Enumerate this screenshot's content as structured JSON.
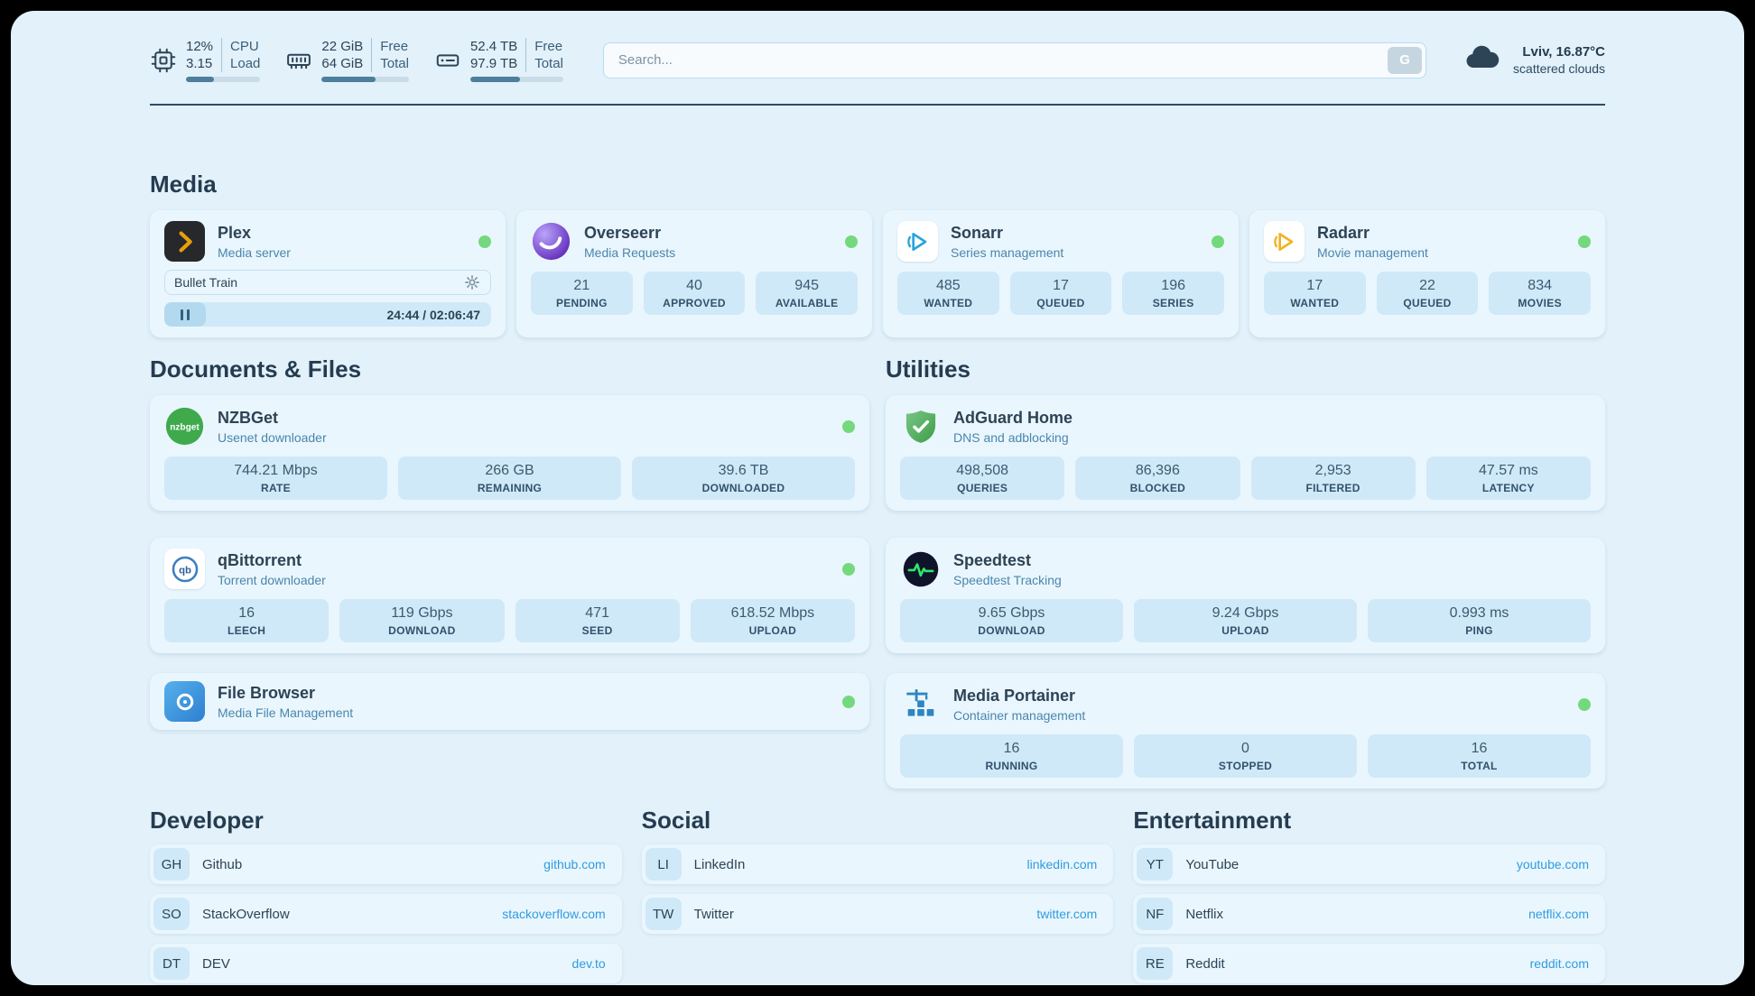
{
  "topbar": {
    "metrics": [
      {
        "rows": [
          {
            "value": "12%",
            "label": "CPU"
          },
          {
            "value": "3.15",
            "label": "Load"
          }
        ],
        "progress": 38
      },
      {
        "rows": [
          {
            "value": "22 GiB",
            "label": "Free"
          },
          {
            "value": "64 GiB",
            "label": "Total"
          }
        ],
        "progress": 62
      },
      {
        "rows": [
          {
            "value": "52.4 TB",
            "label": "Free"
          },
          {
            "value": "97.9 TB",
            "label": "Total"
          }
        ],
        "progress": 53
      }
    ],
    "search": {
      "placeholder": "Search...",
      "button_label": "G"
    },
    "weather": {
      "location": "Lviv, 16.87°C",
      "condition": "scattered clouds"
    }
  },
  "sections": {
    "media": {
      "title": "Media"
    },
    "documents": {
      "title": "Documents & Files"
    },
    "utilities": {
      "title": "Utilities"
    },
    "developer": {
      "title": "Developer"
    },
    "social": {
      "title": "Social"
    },
    "entertainment": {
      "title": "Entertainment"
    }
  },
  "apps": {
    "plex": {
      "name": "Plex",
      "subtitle": "Media server",
      "status": "online",
      "player": {
        "title": "Bullet Train",
        "time": "24:44 / 02:06:47"
      }
    },
    "overseerr": {
      "name": "Overseerr",
      "subtitle": "Media Requests",
      "status": "online",
      "stats": [
        {
          "value": "21",
          "label": "PENDING"
        },
        {
          "value": "40",
          "label": "APPROVED"
        },
        {
          "value": "945",
          "label": "AVAILABLE"
        }
      ]
    },
    "sonarr": {
      "name": "Sonarr",
      "subtitle": "Series management",
      "status": "online",
      "stats": [
        {
          "value": "485",
          "label": "WANTED"
        },
        {
          "value": "17",
          "label": "QUEUED"
        },
        {
          "value": "196",
          "label": "SERIES"
        }
      ]
    },
    "radarr": {
      "name": "Radarr",
      "subtitle": "Movie management",
      "status": "online",
      "stats": [
        {
          "value": "17",
          "label": "WANTED"
        },
        {
          "value": "22",
          "label": "QUEUED"
        },
        {
          "value": "834",
          "label": "MOVIES"
        }
      ]
    },
    "nzbget": {
      "name": "NZBGet",
      "subtitle": "Usenet downloader",
      "status": "online",
      "stats": [
        {
          "value": "744.21 Mbps",
          "label": "RATE"
        },
        {
          "value": "266 GB",
          "label": "REMAINING"
        },
        {
          "value": "39.6 TB",
          "label": "DOWNLOADED"
        }
      ]
    },
    "qbittorrent": {
      "name": "qBittorrent",
      "subtitle": "Torrent downloader",
      "status": "online",
      "stats": [
        {
          "value": "16",
          "label": "LEECH"
        },
        {
          "value": "119 Gbps",
          "label": "DOWNLOAD"
        },
        {
          "value": "471",
          "label": "SEED"
        },
        {
          "value": "618.52 Mbps",
          "label": "UPLOAD"
        }
      ]
    },
    "filebrowser": {
      "name": "File Browser",
      "subtitle": "Media File Management",
      "status": "online"
    },
    "adguard": {
      "name": "AdGuard Home",
      "subtitle": "DNS and adblocking",
      "stats": [
        {
          "value": "498,508",
          "label": "QUERIES"
        },
        {
          "value": "86,396",
          "label": "BLOCKED"
        },
        {
          "value": "2,953",
          "label": "FILTERED"
        },
        {
          "value": "47.57 ms",
          "label": "LATENCY"
        }
      ]
    },
    "speedtest": {
      "name": "Speedtest",
      "subtitle": "Speedtest Tracking",
      "stats": [
        {
          "value": "9.65 Gbps",
          "label": "DOWNLOAD"
        },
        {
          "value": "9.24 Gbps",
          "label": "UPLOAD"
        },
        {
          "value": "0.993 ms",
          "label": "PING"
        }
      ]
    },
    "portainer": {
      "name": "Media Portainer",
      "subtitle": "Container management",
      "status": "online",
      "stats": [
        {
          "value": "16",
          "label": "RUNNING"
        },
        {
          "value": "0",
          "label": "STOPPED"
        },
        {
          "value": "16",
          "label": "TOTAL"
        }
      ]
    }
  },
  "bookmarks": {
    "developer": [
      {
        "abbr": "GH",
        "name": "Github",
        "link": "github.com"
      },
      {
        "abbr": "SO",
        "name": "StackOverflow",
        "link": "stackoverflow.com"
      },
      {
        "abbr": "DT",
        "name": "DEV",
        "link": "dev.to"
      }
    ],
    "social": [
      {
        "abbr": "LI",
        "name": "LinkedIn",
        "link": "linkedin.com"
      },
      {
        "abbr": "TW",
        "name": "Twitter",
        "link": "twitter.com"
      }
    ],
    "entertainment": [
      {
        "abbr": "YT",
        "name": "YouTube",
        "link": "youtube.com"
      },
      {
        "abbr": "NF",
        "name": "Netflix",
        "link": "netflix.com"
      },
      {
        "abbr": "RE",
        "name": "Reddit",
        "link": "reddit.com"
      }
    ]
  },
  "icons": {
    "cpu": "cpu-chip",
    "memory": "ram-stick",
    "disk": "hard-drive",
    "weather": "cloud",
    "plex": "yellow-chevron-on-dark",
    "overseerr": "purple-swirl-circle",
    "sonarr": "blue-play-arrow",
    "radarr": "yellow-play-arrow",
    "nzbget": "green-circle-wordmark",
    "qbittorrent": "qb-ring",
    "filebrowser": "white-ring-on-blue",
    "adguard": "green-shield-check",
    "speedtest": "dark-circle-pulse",
    "portainer": "crane-containers"
  },
  "colors": {
    "background": "#e2f1fa",
    "card": "#eaf6fd",
    "tile": "#cfe9f8",
    "accent_link": "#2f9ce0",
    "status_online": "#74d97c",
    "text_primary": "#2d4356",
    "text_subtitle": "#4a86ad",
    "progress_fill": "#4d7e9b"
  }
}
